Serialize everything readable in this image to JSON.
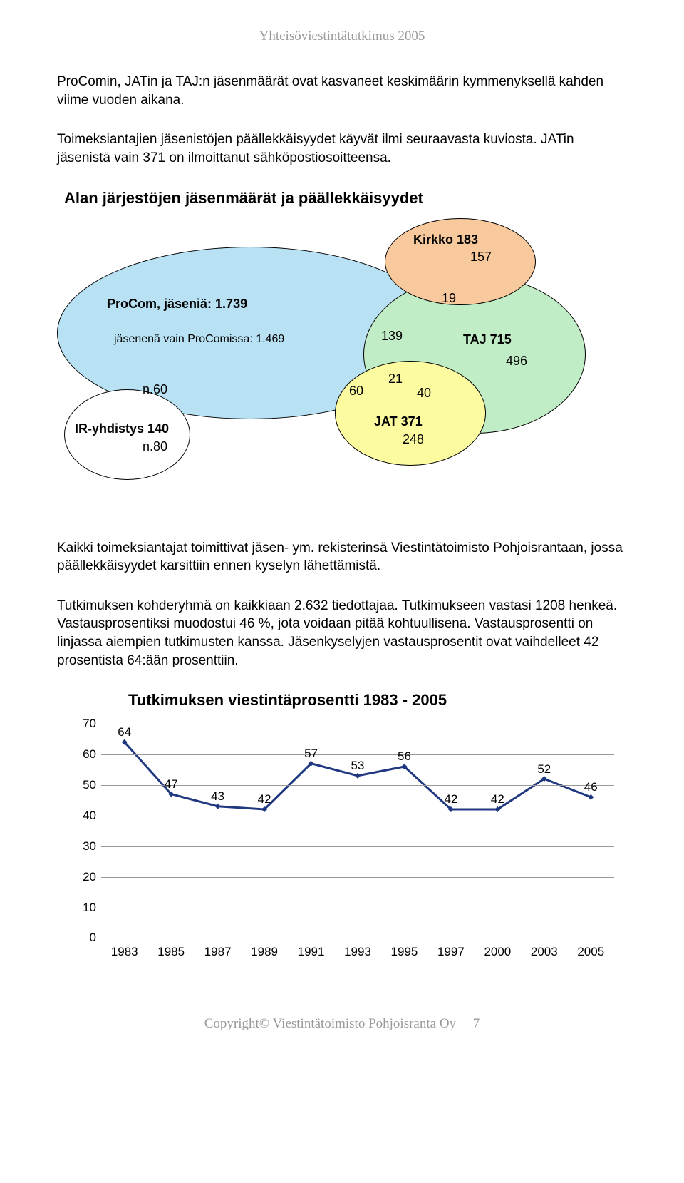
{
  "header_text": "Yhteisöviestintätutkimus 2005",
  "paragraph1": "ProComin, JATin ja TAJ:n jäsenmäärät ovat kasvaneet keskimäärin kymmenyksellä kahden viime vuoden aikana.",
  "paragraph2": "Toimeksiantajien jäsenistöjen päällekkäisyydet käyvät ilmi seuraavasta kuviosta. JATin jäsenistä vain 371 on ilmoittanut sähköpostiosoitteensa.",
  "venn": {
    "title": "Alan järjestöjen jäsenmäärät ja päällekkäisyydet",
    "colors": {
      "procom": "#b8e2f4",
      "taj": "#c0edc6",
      "kirkko": "#f8c99c",
      "jat": "#fdfb9f",
      "ir": "#ffffff"
    },
    "labels": {
      "kirkko_title": "Kirkko 183",
      "kirkko_val": "157",
      "procom_title": "ProCom, jäseniä: 1.739",
      "procom_sub": "jäsenenä vain ProComissa: 1.469",
      "n19": "19",
      "n139": "139",
      "taj_title": "TAJ 715",
      "taj_val": "496",
      "n60_left": "n.60",
      "n60": "60",
      "n21": "21",
      "n40": "40",
      "ir_title": "IR-yhdistys 140",
      "ir_val": "n.80",
      "jat_title": "JAT 371",
      "jat_val": "248"
    }
  },
  "paragraph3": "Kaikki toimeksiantajat toimittivat jäsen- ym. rekisterinsä Viestintätoimisto Pohjoisrantaan, jossa päällekkäisyydet karsittiin ennen kyselyn lähettämistä.",
  "paragraph4": "Tutkimuksen kohderyhmä on kaikkiaan 2.632 tiedottajaa. Tutkimukseen vastasi 1208 henkeä. Vastausprosentiksi muodostui 46 %, jota voidaan pitää kohtuullisena. Vastausprosentti on linjassa aiempien tutkimusten kanssa. Jäsenkyselyjen vastausprosentit ovat vaihdelleet 42 prosentista 64:ään prosenttiin.",
  "chart": {
    "title": "Tutkimuksen viestintäprosentti 1983 - 2005",
    "type": "line",
    "x_labels": [
      "1983",
      "1985",
      "1987",
      "1989",
      "1991",
      "1993",
      "1995",
      "1997",
      "2000",
      "2003",
      "2005"
    ],
    "y_ticks": [
      0,
      10,
      20,
      30,
      40,
      50,
      60,
      70
    ],
    "ylim": [
      0,
      70
    ],
    "values": [
      64,
      47,
      43,
      42,
      57,
      53,
      56,
      42,
      42,
      52,
      46
    ],
    "line_color": "#203880",
    "marker_color": "#203880",
    "grid_color": "#999999",
    "line_width": 3,
    "marker_size": 8
  },
  "footer": {
    "copyright": "Copyright© Viestintätoimisto Pohjoisranta Oy",
    "page_num": "7"
  }
}
